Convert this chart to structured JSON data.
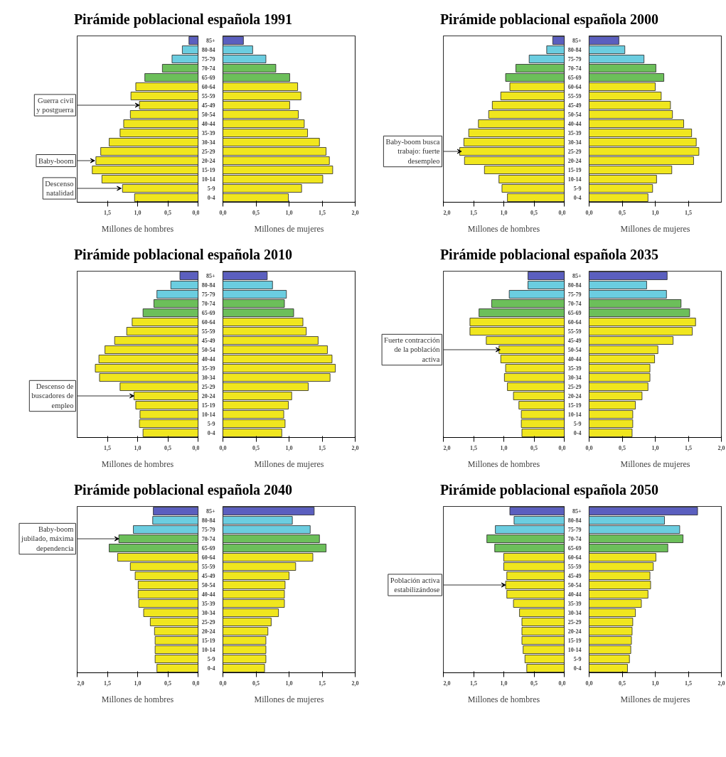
{
  "chart_data": [
    {
      "type": "bar",
      "orientation": "horizontal",
      "title": "Pirámide poblacional española 1991",
      "xlabel": "Millones de hombres",
      "tick_labels": "x",
      "categories": [
        "85+",
        "80-84",
        "75-79",
        "70-74",
        "65-69",
        "60-64",
        "55-59",
        "45-49",
        "50-54",
        "40-44",
        "35-39",
        "30-34",
        "25-29",
        "20-24",
        "15-19",
        "10-14",
        "5-9",
        "0-4"
      ],
      "values": [
        0.15,
        0.26,
        0.43,
        0.59,
        0.88,
        1.03,
        1.11,
        0.97,
        1.12,
        1.23,
        1.29,
        1.47,
        1.61,
        1.69,
        1.75,
        1.59,
        1.25,
        1.05
      ],
      "colors": [
        "#5b5fbf",
        "#6bcde0",
        "#6bcde0",
        "#6cbf5a",
        "#6cbf5a",
        "#f0e61e",
        "#f0e61e",
        "#f0e61e",
        "#f0e61e",
        "#f0e61e",
        "#f0e61e",
        "#f0e61e",
        "#f0e61e",
        "#f0e61e",
        "#f0e61e",
        "#f0e61e",
        "#f0e61e",
        "#f0e61e"
      ],
      "xlim": [
        2,
        0
      ],
      "xticks": [
        {
          "value": 0,
          "label": "0,0"
        },
        {
          "value": 0.5,
          "label": "0,5"
        },
        {
          "value": 1,
          "label": "1,0"
        },
        {
          "value": 1.5,
          "label": "1,5"
        }
      ],
      "annotations": [
        {
          "text": "Guerra civil\ny postguerra",
          "x": 0.97,
          "y": "45-49"
        },
        {
          "text": "Baby-boom",
          "x": 1.71,
          "y": "20-24"
        },
        {
          "text": "Descenso\nnatalidad",
          "x": 1.27,
          "y": "5-9"
        }
      ]
    },
    {
      "type": "bar",
      "orientation": "horizontal",
      "xlabel": "Millones de mujeres",
      "categories": [
        "85+",
        "80-84",
        "75-79",
        "70-74",
        "65-69",
        "60-64",
        "55-59",
        "45-49",
        "50-54",
        "40-44",
        "35-39",
        "30-34",
        "25-29",
        "20-24",
        "15-19",
        "10-14",
        "5-9",
        "0-4"
      ],
      "values": [
        0.31,
        0.45,
        0.65,
        0.8,
        1.01,
        1.13,
        1.18,
        1.01,
        1.14,
        1.23,
        1.28,
        1.46,
        1.56,
        1.61,
        1.66,
        1.51,
        1.19,
        0.99
      ],
      "colors": [
        "#5b5fbf",
        "#6bcde0",
        "#6bcde0",
        "#6cbf5a",
        "#6cbf5a",
        "#f0e61e",
        "#f0e61e",
        "#f0e61e",
        "#f0e61e",
        "#f0e61e",
        "#f0e61e",
        "#f0e61e",
        "#f0e61e",
        "#f0e61e",
        "#f0e61e",
        "#f0e61e",
        "#f0e61e",
        "#f0e61e"
      ],
      "xlim": [
        0,
        2
      ],
      "xticks": [
        {
          "value": 0,
          "label": "0,0"
        },
        {
          "value": 0.5,
          "label": "0,5"
        },
        {
          "value": 1,
          "label": "1,0"
        },
        {
          "value": 1.5,
          "label": "1,5"
        },
        {
          "value": 2,
          "label": "2,0"
        }
      ]
    },
    {
      "type": "bar",
      "orientation": "horizontal",
      "title": "Pirámide poblacional española 2000",
      "xlabel": "Millones de hombres",
      "tick_labels": "x",
      "categories": [
        "85+",
        "80-84",
        "75-79",
        "70-74",
        "65-69",
        "60-64",
        "55-59",
        "45-49",
        "50-54",
        "40-44",
        "35-39",
        "30-34",
        "25-29",
        "20-24",
        "15-19",
        "10-14",
        "5-9",
        "0-4"
      ],
      "values": [
        0.19,
        0.29,
        0.58,
        0.8,
        0.97,
        0.9,
        1.05,
        1.19,
        1.25,
        1.42,
        1.58,
        1.66,
        1.73,
        1.65,
        1.32,
        1.08,
        1.03,
        0.94
      ],
      "colors": [
        "#5b5fbf",
        "#6bcde0",
        "#6bcde0",
        "#6cbf5a",
        "#6cbf5a",
        "#f0e61e",
        "#f0e61e",
        "#f0e61e",
        "#f0e61e",
        "#f0e61e",
        "#f0e61e",
        "#f0e61e",
        "#f0e61e",
        "#f0e61e",
        "#f0e61e",
        "#f0e61e",
        "#f0e61e",
        "#f0e61e"
      ],
      "xlim": [
        2,
        0
      ],
      "xticks": [
        {
          "value": 0,
          "label": "0,0"
        },
        {
          "value": 0.5,
          "label": "0,5"
        },
        {
          "value": 1,
          "label": "1,0"
        },
        {
          "value": 1.5,
          "label": "1,5"
        },
        {
          "value": 2,
          "label": "2,0"
        }
      ],
      "annotations": [
        {
          "text": "Baby-boom busca\ntrabajo: fuerte\ndesempleo",
          "x": 1.7,
          "y": "25-29"
        }
      ]
    },
    {
      "type": "bar",
      "orientation": "horizontal",
      "xlabel": "Millones de mujeres",
      "categories": [
        "85+",
        "80-84",
        "75-79",
        "70-74",
        "65-69",
        "60-64",
        "55-59",
        "45-49",
        "50-54",
        "40-44",
        "35-39",
        "30-34",
        "25-29",
        "20-24",
        "15-19",
        "10-14",
        "5-9",
        "0-4"
      ],
      "values": [
        0.45,
        0.54,
        0.83,
        1.01,
        1.13,
        1.0,
        1.09,
        1.23,
        1.26,
        1.43,
        1.55,
        1.62,
        1.66,
        1.58,
        1.25,
        1.02,
        0.96,
        0.89
      ],
      "colors": [
        "#5b5fbf",
        "#6bcde0",
        "#6bcde0",
        "#6cbf5a",
        "#6cbf5a",
        "#f0e61e",
        "#f0e61e",
        "#f0e61e",
        "#f0e61e",
        "#f0e61e",
        "#f0e61e",
        "#f0e61e",
        "#f0e61e",
        "#f0e61e",
        "#f0e61e",
        "#f0e61e",
        "#f0e61e",
        "#f0e61e"
      ],
      "xlim": [
        0,
        2
      ],
      "xticks": [
        {
          "value": 0,
          "label": "0,0"
        },
        {
          "value": 0.5,
          "label": "0,5"
        },
        {
          "value": 1,
          "label": "1,0"
        },
        {
          "value": 1.5,
          "label": "1,5"
        }
      ]
    },
    {
      "type": "bar",
      "orientation": "horizontal",
      "title": "Pirámide poblacional española 2010",
      "xlabel": "Millones de hombres",
      "tick_labels": "x",
      "categories": [
        "85+",
        "80-84",
        "75-79",
        "70-74",
        "65-69",
        "60-64",
        "55-59",
        "45-49",
        "50-54",
        "40-44",
        "35-39",
        "30-34",
        "25-29",
        "20-24",
        "15-19",
        "10-14",
        "5-9",
        "0-4"
      ],
      "values": [
        0.3,
        0.45,
        0.68,
        0.73,
        0.91,
        1.09,
        1.18,
        1.38,
        1.54,
        1.64,
        1.7,
        1.63,
        1.29,
        1.06,
        1.03,
        0.96,
        0.97,
        0.91
      ],
      "colors": [
        "#5b5fbf",
        "#6bcde0",
        "#6bcde0",
        "#6cbf5a",
        "#6cbf5a",
        "#f0e61e",
        "#f0e61e",
        "#f0e61e",
        "#f0e61e",
        "#f0e61e",
        "#f0e61e",
        "#f0e61e",
        "#f0e61e",
        "#f0e61e",
        "#f0e61e",
        "#f0e61e",
        "#f0e61e",
        "#f0e61e"
      ],
      "xlim": [
        2,
        0
      ],
      "xticks": [
        {
          "value": 0,
          "label": "0,0"
        },
        {
          "value": 0.5,
          "label": "0,5"
        },
        {
          "value": 1,
          "label": "1,0"
        },
        {
          "value": 1.5,
          "label": "1,5"
        }
      ],
      "annotations": [
        {
          "text": "Descenso de\nbuscadores de\nempleo",
          "x": 1.06,
          "y": "20-24"
        }
      ]
    },
    {
      "type": "bar",
      "orientation": "horizontal",
      "xlabel": "Millones de mujeres",
      "categories": [
        "85+",
        "80-84",
        "75-79",
        "70-74",
        "65-69",
        "60-64",
        "55-59",
        "45-49",
        "50-54",
        "40-44",
        "35-39",
        "30-34",
        "25-29",
        "20-24",
        "15-19",
        "10-14",
        "5-9",
        "0-4"
      ],
      "values": [
        0.67,
        0.75,
        0.96,
        0.93,
        1.07,
        1.21,
        1.26,
        1.44,
        1.58,
        1.65,
        1.7,
        1.62,
        1.29,
        1.04,
        0.99,
        0.92,
        0.94,
        0.89
      ],
      "colors": [
        "#5b5fbf",
        "#6bcde0",
        "#6bcde0",
        "#6cbf5a",
        "#6cbf5a",
        "#f0e61e",
        "#f0e61e",
        "#f0e61e",
        "#f0e61e",
        "#f0e61e",
        "#f0e61e",
        "#f0e61e",
        "#f0e61e",
        "#f0e61e",
        "#f0e61e",
        "#f0e61e",
        "#f0e61e",
        "#f0e61e"
      ],
      "xlim": [
        0,
        2
      ],
      "xticks": [
        {
          "value": 0,
          "label": "0,0"
        },
        {
          "value": 0.5,
          "label": "0,5"
        },
        {
          "value": 1,
          "label": "1,0"
        },
        {
          "value": 1.5,
          "label": "1,5"
        },
        {
          "value": 2,
          "label": "2,0"
        }
      ]
    },
    {
      "type": "bar",
      "orientation": "horizontal",
      "title": "Pirámide poblacional española 2035",
      "xlabel": "Millones de hombres",
      "tick_labels": "x",
      "categories": [
        "85+",
        "80-84",
        "75-79",
        "70-74",
        "65-69",
        "60-64",
        "55-59",
        "45-49",
        "50-54",
        "40-44",
        "35-39",
        "30-34",
        "25-29",
        "20-24",
        "15-19",
        "10-14",
        "5-9",
        "0-4"
      ],
      "values": [
        0.6,
        0.6,
        0.91,
        1.2,
        1.41,
        1.56,
        1.56,
        1.29,
        1.08,
        1.05,
        0.97,
        0.99,
        0.94,
        0.84,
        0.75,
        0.71,
        0.71,
        0.7
      ],
      "colors": [
        "#5b5fbf",
        "#6bcde0",
        "#6bcde0",
        "#6cbf5a",
        "#6cbf5a",
        "#f0e61e",
        "#f0e61e",
        "#f0e61e",
        "#f0e61e",
        "#f0e61e",
        "#f0e61e",
        "#f0e61e",
        "#f0e61e",
        "#f0e61e",
        "#f0e61e",
        "#f0e61e",
        "#f0e61e",
        "#f0e61e"
      ],
      "xlim": [
        2,
        0
      ],
      "xticks": [
        {
          "value": 0,
          "label": "0,0"
        },
        {
          "value": 0.5,
          "label": "0,5"
        },
        {
          "value": 1,
          "label": "1,0"
        },
        {
          "value": 1.5,
          "label": "1,5"
        },
        {
          "value": 2,
          "label": "2,0"
        }
      ],
      "annotations": [
        {
          "text": "Fuerte contracción\nde la población\nactiva",
          "x": 1.06,
          "y": "50-54"
        }
      ]
    },
    {
      "type": "bar",
      "orientation": "horizontal",
      "xlabel": "Millones de mujeres",
      "categories": [
        "85+",
        "80-84",
        "75-79",
        "70-74",
        "65-69",
        "60-64",
        "55-59",
        "45-49",
        "50-54",
        "40-44",
        "35-39",
        "30-34",
        "25-29",
        "20-24",
        "15-19",
        "10-14",
        "5-9",
        "0-4"
      ],
      "values": [
        1.18,
        0.87,
        1.17,
        1.39,
        1.52,
        1.61,
        1.56,
        1.27,
        1.04,
        0.99,
        0.92,
        0.92,
        0.89,
        0.8,
        0.7,
        0.66,
        0.66,
        0.65
      ],
      "colors": [
        "#5b5fbf",
        "#6bcde0",
        "#6bcde0",
        "#6cbf5a",
        "#6cbf5a",
        "#f0e61e",
        "#f0e61e",
        "#f0e61e",
        "#f0e61e",
        "#f0e61e",
        "#f0e61e",
        "#f0e61e",
        "#f0e61e",
        "#f0e61e",
        "#f0e61e",
        "#f0e61e",
        "#f0e61e",
        "#f0e61e"
      ],
      "xlim": [
        0,
        2
      ],
      "xticks": [
        {
          "value": 0,
          "label": "0,0"
        },
        {
          "value": 0.5,
          "label": "0,5"
        },
        {
          "value": 1,
          "label": "1,0"
        },
        {
          "value": 1.5,
          "label": "1,5"
        },
        {
          "value": 2,
          "label": "2,0"
        }
      ]
    },
    {
      "type": "bar",
      "orientation": "horizontal",
      "title": "Pirámide poblacional española 2040",
      "xlabel": "Millones de hombres",
      "tick_labels": "x",
      "categories": [
        "85+",
        "80-84",
        "75-79",
        "70-74",
        "65-69",
        "60-64",
        "55-59",
        "45-49",
        "50-54",
        "40-44",
        "35-39",
        "30-34",
        "25-29",
        "20-24",
        "15-19",
        "10-14",
        "5-9",
        "0-4"
      ],
      "values": [
        0.74,
        0.75,
        1.07,
        1.31,
        1.47,
        1.33,
        1.12,
        1.04,
        0.99,
        0.99,
        0.98,
        0.9,
        0.79,
        0.72,
        0.71,
        0.71,
        0.71,
        0.68
      ],
      "colors": [
        "#5b5fbf",
        "#6bcde0",
        "#6bcde0",
        "#6cbf5a",
        "#6cbf5a",
        "#f0e61e",
        "#f0e61e",
        "#f0e61e",
        "#f0e61e",
        "#f0e61e",
        "#f0e61e",
        "#f0e61e",
        "#f0e61e",
        "#f0e61e",
        "#f0e61e",
        "#f0e61e",
        "#f0e61e",
        "#f0e61e"
      ],
      "xlim": [
        2,
        0
      ],
      "xticks": [
        {
          "value": 0,
          "label": "0,0"
        },
        {
          "value": 0.5,
          "label": "0,5"
        },
        {
          "value": 1,
          "label": "1,0"
        },
        {
          "value": 1.5,
          "label": "1,5"
        },
        {
          "value": 2,
          "label": "2,0"
        }
      ],
      "annotations": [
        {
          "text": "Baby-boom\njubilado, máxima\ndependencia",
          "x": 1.31,
          "y": "70-74"
        }
      ]
    },
    {
      "type": "bar",
      "orientation": "horizontal",
      "xlabel": "Millones de mujeres",
      "categories": [
        "85+",
        "80-84",
        "75-79",
        "70-74",
        "65-69",
        "60-64",
        "55-59",
        "45-49",
        "50-54",
        "40-44",
        "35-39",
        "30-34",
        "25-29",
        "20-24",
        "15-19",
        "10-14",
        "5-9",
        "0-4"
      ],
      "values": [
        1.38,
        1.05,
        1.32,
        1.46,
        1.56,
        1.36,
        1.1,
        1.0,
        0.94,
        0.93,
        0.93,
        0.84,
        0.73,
        0.68,
        0.65,
        0.65,
        0.65,
        0.63
      ],
      "colors": [
        "#5b5fbf",
        "#6bcde0",
        "#6bcde0",
        "#6cbf5a",
        "#6cbf5a",
        "#f0e61e",
        "#f0e61e",
        "#f0e61e",
        "#f0e61e",
        "#f0e61e",
        "#f0e61e",
        "#f0e61e",
        "#f0e61e",
        "#f0e61e",
        "#f0e61e",
        "#f0e61e",
        "#f0e61e",
        "#f0e61e"
      ],
      "xlim": [
        0,
        2
      ],
      "xticks": [
        {
          "value": 0,
          "label": "0,0"
        },
        {
          "value": 0.5,
          "label": "0,5"
        },
        {
          "value": 1,
          "label": "1,0"
        },
        {
          "value": 1.5,
          "label": "1,5"
        },
        {
          "value": 2,
          "label": "2,0"
        }
      ]
    },
    {
      "type": "bar",
      "orientation": "horizontal",
      "title": "Pirámide poblacional española 2050",
      "xlabel": "Millones de hombres",
      "tick_labels": "x",
      "categories": [
        "85+",
        "80-84",
        "75-79",
        "70-74",
        "65-69",
        "60-64",
        "55-59",
        "45-49",
        "50-54",
        "40-44",
        "35-39",
        "30-34",
        "25-29",
        "20-24",
        "15-19",
        "10-14",
        "5-9",
        "0-4"
      ],
      "values": [
        0.9,
        0.83,
        1.14,
        1.28,
        1.15,
        1.0,
        1.0,
        0.95,
        0.97,
        0.95,
        0.84,
        0.74,
        0.7,
        0.7,
        0.7,
        0.68,
        0.65,
        0.62
      ],
      "colors": [
        "#5b5fbf",
        "#6bcde0",
        "#6bcde0",
        "#6cbf5a",
        "#6cbf5a",
        "#f0e61e",
        "#f0e61e",
        "#f0e61e",
        "#f0e61e",
        "#f0e61e",
        "#f0e61e",
        "#f0e61e",
        "#f0e61e",
        "#f0e61e",
        "#f0e61e",
        "#f0e61e",
        "#f0e61e",
        "#f0e61e"
      ],
      "xlim": [
        2,
        0
      ],
      "xticks": [
        {
          "value": 0,
          "label": "0,0"
        },
        {
          "value": 0.5,
          "label": "0,5"
        },
        {
          "value": 1,
          "label": "1,0"
        },
        {
          "value": 1.5,
          "label": "1,5"
        },
        {
          "value": 2,
          "label": "2,0"
        }
      ],
      "annotations": [
        {
          "text": "Población activa\nestabilizándose",
          "x": 0.97,
          "y": "50-54"
        }
      ]
    },
    {
      "type": "bar",
      "orientation": "horizontal",
      "xlabel": "Millones de mujeres",
      "categories": [
        "85+",
        "80-84",
        "75-79",
        "70-74",
        "65-69",
        "60-64",
        "55-59",
        "45-49",
        "50-54",
        "40-44",
        "35-39",
        "30-34",
        "25-29",
        "20-24",
        "15-19",
        "10-14",
        "5-9",
        "0-4"
      ],
      "values": [
        1.64,
        1.14,
        1.37,
        1.42,
        1.19,
        1.01,
        0.97,
        0.92,
        0.93,
        0.89,
        0.79,
        0.7,
        0.66,
        0.65,
        0.64,
        0.63,
        0.61,
        0.58
      ],
      "colors": [
        "#5b5fbf",
        "#6bcde0",
        "#6bcde0",
        "#6cbf5a",
        "#6cbf5a",
        "#f0e61e",
        "#f0e61e",
        "#f0e61e",
        "#f0e61e",
        "#f0e61e",
        "#f0e61e",
        "#f0e61e",
        "#f0e61e",
        "#f0e61e",
        "#f0e61e",
        "#f0e61e",
        "#f0e61e",
        "#f0e61e"
      ],
      "xlim": [
        0,
        2
      ],
      "xticks": [
        {
          "value": 0,
          "label": "0,0"
        },
        {
          "value": 0.5,
          "label": "0,5"
        },
        {
          "value": 1,
          "label": "1,0"
        },
        {
          "value": 1.5,
          "label": "1,5"
        },
        {
          "value": 2,
          "label": "2,0"
        }
      ]
    }
  ]
}
